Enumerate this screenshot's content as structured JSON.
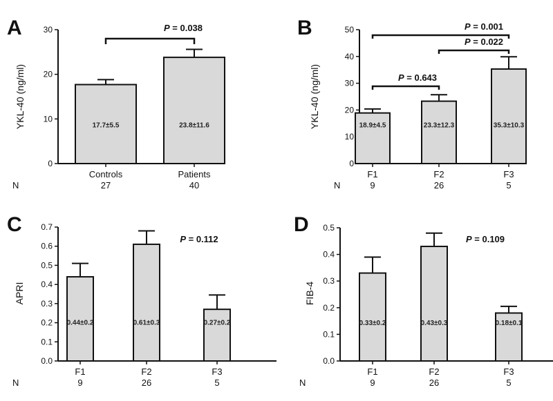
{
  "figure": {
    "n_label": "N"
  },
  "chart_data": [
    {
      "panel": "A",
      "type": "bar",
      "ylabel": "YKL-40 (ng/ml)",
      "ylim": [
        0,
        30
      ],
      "yticks": [
        "0",
        "10",
        "20",
        "30"
      ],
      "categories": [
        "Controls",
        "Patients"
      ],
      "values": [
        17.7,
        23.8
      ],
      "errors": [
        1.1,
        1.8
      ],
      "value_labels": [
        "17.7±5.5",
        "23.8±11.6"
      ],
      "n": [
        "27",
        "40"
      ],
      "brackets": [
        {
          "from": 0,
          "to": 1,
          "label_prefix": "P",
          "label_value": " = 0.038"
        }
      ]
    },
    {
      "panel": "B",
      "type": "bar",
      "ylabel": "YKL-40 (ng/ml)",
      "ylim": [
        0,
        50
      ],
      "yticks": [
        "0",
        "10",
        "20",
        "30",
        "40",
        "50"
      ],
      "categories": [
        "F1",
        "F2",
        "F3"
      ],
      "values": [
        18.9,
        23.3,
        35.3
      ],
      "errors": [
        1.5,
        2.4,
        4.6
      ],
      "value_labels": [
        "18.9±4.5",
        "23.3±12.3",
        "35.3±10.3"
      ],
      "n": [
        "9",
        "26",
        "5"
      ],
      "brackets": [
        {
          "from": 0,
          "to": 1,
          "label_prefix": "P",
          "label_value": " = 0.643"
        },
        {
          "from": 1,
          "to": 2,
          "label_prefix": "P",
          "label_value": " = 0.022"
        },
        {
          "from": 0,
          "to": 2,
          "label_prefix": "P",
          "label_value": " = 0.001"
        }
      ]
    },
    {
      "panel": "C",
      "type": "bar",
      "ylabel": "APRI",
      "ylim": [
        0,
        0.7
      ],
      "yticks": [
        "0.0",
        "0.1",
        "0.2",
        "0.3",
        "0.4",
        "0.5",
        "0.6",
        "0.7"
      ],
      "categories": [
        "F1",
        "F2",
        "F3"
      ],
      "values": [
        0.44,
        0.61,
        0.27
      ],
      "errors": [
        0.07,
        0.07,
        0.075
      ],
      "value_labels": [
        "0.44±0.2",
        "0.61±0.3",
        "0.27±0.2"
      ],
      "n": [
        "9",
        "26",
        "5"
      ],
      "pvalue": {
        "label_prefix": "P",
        "label_value": " = 0.112"
      }
    },
    {
      "panel": "D",
      "type": "bar",
      "ylabel": "FIB-4",
      "ylim": [
        0,
        0.5
      ],
      "yticks": [
        "0.0",
        "0.1",
        "0.2",
        "0.3",
        "0.4",
        "0.5"
      ],
      "categories": [
        "F1",
        "F2",
        "F3"
      ],
      "values": [
        0.33,
        0.43,
        0.18
      ],
      "errors": [
        0.06,
        0.05,
        0.025
      ],
      "value_labels": [
        "0.33±0.2",
        "0.43±0.3",
        "0.18±0.1"
      ],
      "n": [
        "9",
        "26",
        "5"
      ],
      "pvalue": {
        "label_prefix": "P",
        "label_value": " = 0.109"
      }
    }
  ]
}
